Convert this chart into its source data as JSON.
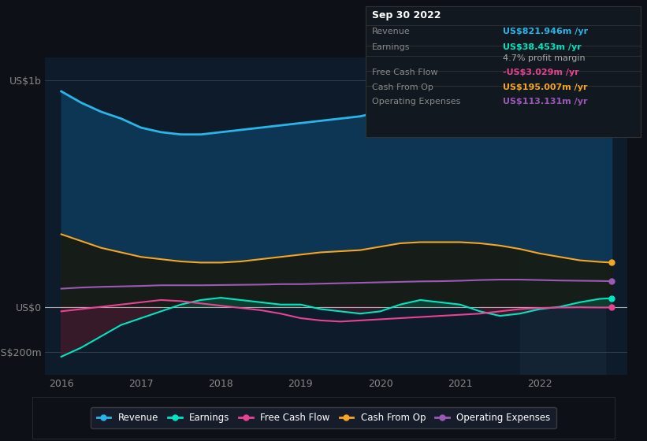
{
  "background_color": "#0d1117",
  "plot_bg_color": "#0d1b2a",
  "shaded_region_color": "#152535",
  "years": [
    2016.0,
    2016.25,
    2016.5,
    2016.75,
    2017.0,
    2017.25,
    2017.5,
    2017.75,
    2018.0,
    2018.25,
    2018.5,
    2018.75,
    2019.0,
    2019.25,
    2019.5,
    2019.75,
    2020.0,
    2020.25,
    2020.5,
    2020.75,
    2021.0,
    2021.25,
    2021.5,
    2021.75,
    2022.0,
    2022.25,
    2022.5,
    2022.75,
    2022.9
  ],
  "revenue": [
    950,
    900,
    860,
    830,
    790,
    770,
    760,
    760,
    770,
    780,
    790,
    800,
    810,
    820,
    830,
    840,
    860,
    880,
    900,
    930,
    930,
    900,
    860,
    820,
    790,
    800,
    820,
    840,
    822
  ],
  "earnings": [
    -220,
    -180,
    -130,
    -80,
    -50,
    -20,
    10,
    30,
    40,
    30,
    20,
    10,
    10,
    -10,
    -20,
    -30,
    -20,
    10,
    30,
    20,
    10,
    -20,
    -40,
    -30,
    -10,
    0,
    20,
    35,
    38
  ],
  "free_cash_flow": [
    -20,
    -10,
    0,
    10,
    20,
    30,
    25,
    15,
    5,
    -5,
    -15,
    -30,
    -50,
    -60,
    -65,
    -60,
    -55,
    -50,
    -45,
    -40,
    -35,
    -30,
    -20,
    -10,
    -5,
    -3,
    -2,
    -3,
    -3
  ],
  "cash_from_op": [
    320,
    290,
    260,
    240,
    220,
    210,
    200,
    195,
    195,
    200,
    210,
    220,
    230,
    240,
    245,
    250,
    265,
    280,
    285,
    285,
    285,
    280,
    270,
    255,
    235,
    220,
    205,
    198,
    195
  ],
  "operating_expenses": [
    80,
    85,
    88,
    90,
    92,
    95,
    95,
    95,
    96,
    97,
    98,
    100,
    100,
    102,
    104,
    106,
    108,
    110,
    112,
    113,
    115,
    118,
    120,
    120,
    118,
    116,
    115,
    114,
    113
  ],
  "revenue_color": "#29b5e8",
  "earnings_color": "#00e5c0",
  "free_cash_flow_color": "#e84393",
  "cash_from_op_color": "#f5a623",
  "operating_expenses_color": "#9b59b6",
  "revenue_fill_color": "#0d3a5c",
  "earnings_fill_pos_color": "#0d4a3a",
  "earnings_fill_neg_color": "#4a1a2a",
  "xlim": [
    2015.8,
    2023.1
  ],
  "ylim": [
    -300,
    1100
  ],
  "yticks": [
    -200,
    0,
    1000
  ],
  "ytick_labels": [
    "-US$200m",
    "US$0",
    "US$1b"
  ],
  "xticks": [
    2016,
    2017,
    2018,
    2019,
    2020,
    2021,
    2022
  ],
  "xtick_labels": [
    "2016",
    "2017",
    "2018",
    "2019",
    "2020",
    "2021",
    "2022"
  ],
  "tooltip_title": "Sep 30 2022",
  "tooltip_rows": [
    {
      "label": "Revenue",
      "value": "US$821.946m /yr",
      "value_color": "#29b5e8"
    },
    {
      "label": "Earnings",
      "value": "US$38.453m /yr",
      "value_color": "#00e5c0"
    },
    {
      "label": "",
      "value": "4.7% profit margin",
      "value_color": "#aaaaaa"
    },
    {
      "label": "Free Cash Flow",
      "value": "-US$3.029m /yr",
      "value_color": "#e84393"
    },
    {
      "label": "Cash From Op",
      "value": "US$195.007m /yr",
      "value_color": "#f5a623"
    },
    {
      "label": "Operating Expenses",
      "value": "US$113.131m /yr",
      "value_color": "#9b59b6"
    }
  ],
  "legend_items": [
    {
      "label": "Revenue",
      "color": "#29b5e8"
    },
    {
      "label": "Earnings",
      "color": "#00e5c0"
    },
    {
      "label": "Free Cash Flow",
      "color": "#e84393"
    },
    {
      "label": "Cash From Op",
      "color": "#f5a623"
    },
    {
      "label": "Operating Expenses",
      "color": "#9b59b6"
    }
  ]
}
